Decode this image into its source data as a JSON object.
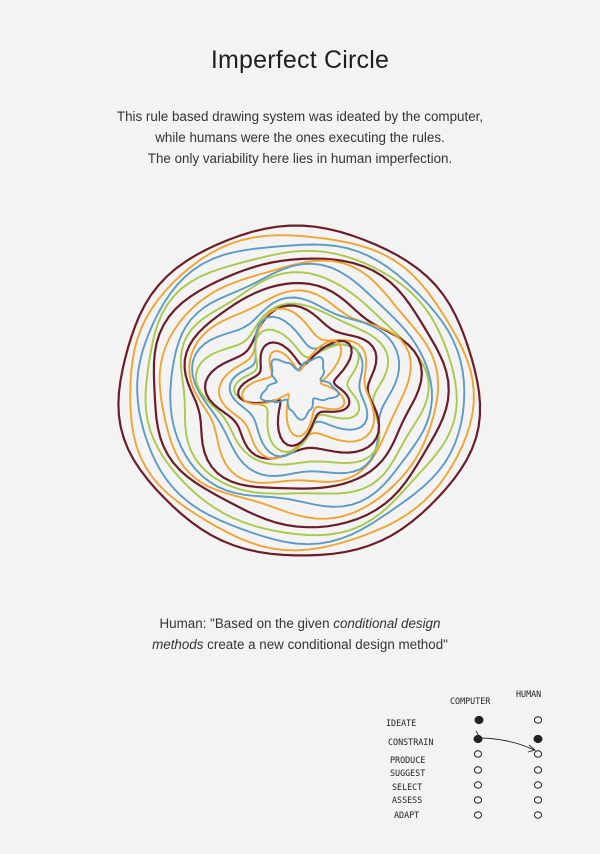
{
  "title": "Imperfect Circle",
  "description": [
    "This rule based drawing system was ideated by the computer,",
    "while humans were the ones executing the rules.",
    "The only variability here lies in  human imperfection."
  ],
  "quote": {
    "prefix": "Human: \"Based on the given ",
    "emphasis_1": "conditional design",
    "emphasis_2": "methods",
    "suffix": " create a new conditional design method\""
  },
  "diagram": {
    "column_headers": [
      "COMPUTER",
      "HUMAN"
    ],
    "rows": [
      "IDEATE",
      "CONSTRAIN",
      "PRODUCE",
      "SUGGEST",
      "SELECT",
      "ASSESS",
      "ADAPT"
    ],
    "computer_filled": [
      true,
      true,
      false,
      false,
      false,
      false,
      false
    ],
    "human_filled": [
      false,
      true,
      false,
      false,
      false,
      false,
      false
    ]
  },
  "colors": {
    "maroon": "#6b1e2a",
    "blue": "#5b9bc6",
    "orange": "#f0a431",
    "green": "#a8c94a",
    "background": "#f4f3f3"
  }
}
